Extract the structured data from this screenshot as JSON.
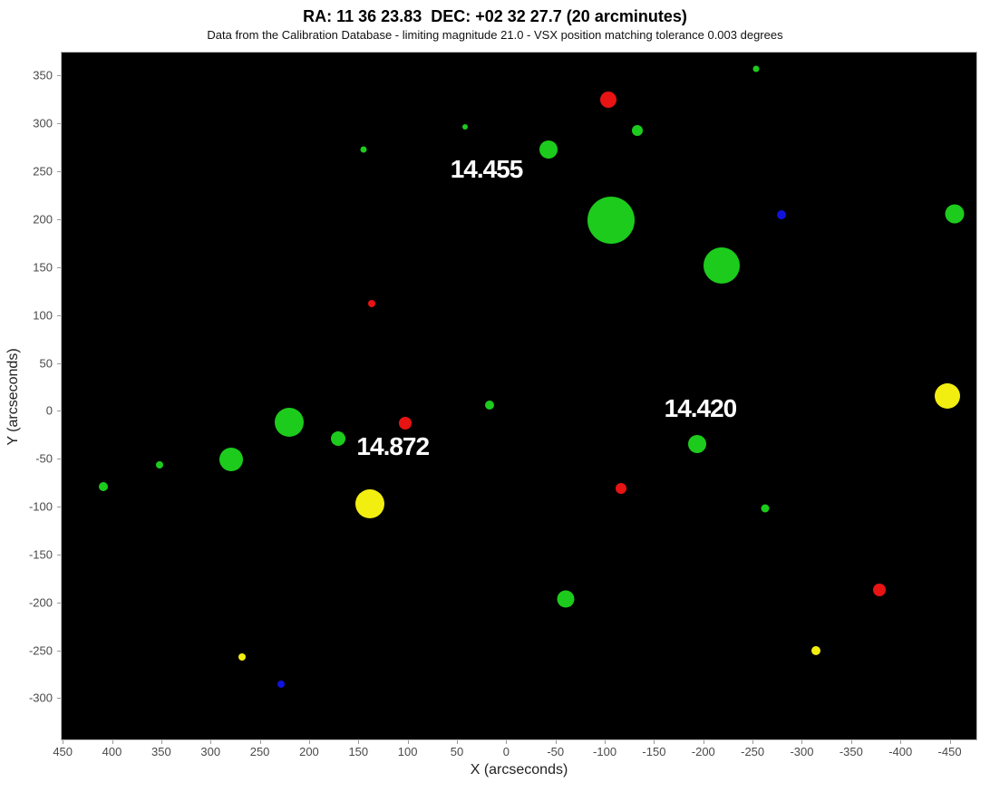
{
  "chart_data": {
    "type": "scatter",
    "title": "RA: 11 36 23.83  DEC: +02 32 27.7 (20 arcminutes)",
    "subtitle": "Data from the Calibration Database - limiting magnitude 21.0 - VSX position matching tolerance 0.003 degrees",
    "xlabel": "X (arcseconds)",
    "ylabel": "Y (arcseconds)",
    "xlim": [
      452,
      -478
    ],
    "ylim_top": 375,
    "ylim_bottom": -344,
    "x_ticks": [
      450,
      400,
      350,
      300,
      250,
      200,
      150,
      100,
      50,
      0,
      -50,
      -100,
      -150,
      -200,
      -250,
      -300,
      -350,
      -400,
      -450
    ],
    "y_ticks": [
      350,
      300,
      250,
      200,
      150,
      100,
      50,
      0,
      -50,
      -100,
      -150,
      -200,
      -250,
      -300
    ],
    "grid": false,
    "legend": "none",
    "plot_background": "#000000",
    "colors": {
      "green": "#1dcb1d",
      "red": "#e81313",
      "yellow": "#f2ee10",
      "blue": "#1113dd"
    },
    "points": [
      {
        "x": 146,
        "y": 274,
        "r": 3.5,
        "color": "green"
      },
      {
        "x": 43,
        "y": 297,
        "r": 3,
        "color": "green"
      },
      {
        "x": -103,
        "y": 326,
        "r": 9,
        "color": "red"
      },
      {
        "x": -132,
        "y": 294,
        "r": 6,
        "color": "green"
      },
      {
        "x": -42,
        "y": 274,
        "r": 10,
        "color": "green"
      },
      {
        "x": -105,
        "y": 200,
        "r": 26,
        "color": "green"
      },
      {
        "x": -253,
        "y": 358,
        "r": 3.5,
        "color": "green"
      },
      {
        "x": -278,
        "y": 206,
        "r": 5,
        "color": "blue"
      },
      {
        "x": -454,
        "y": 207,
        "r": 10.5,
        "color": "green"
      },
      {
        "x": -218,
        "y": 153,
        "r": 20,
        "color": "green"
      },
      {
        "x": 137,
        "y": 113,
        "r": 4,
        "color": "red"
      },
      {
        "x": 410,
        "y": -78,
        "r": 5,
        "color": "green"
      },
      {
        "x": 353,
        "y": -55,
        "r": 4,
        "color": "green"
      },
      {
        "x": 280,
        "y": -50,
        "r": 13,
        "color": "green"
      },
      {
        "x": 221,
        "y": -11,
        "r": 16,
        "color": "green"
      },
      {
        "x": 171,
        "y": -28,
        "r": 8,
        "color": "green"
      },
      {
        "x": 103,
        "y": -12,
        "r": 7,
        "color": "red"
      },
      {
        "x": 18,
        "y": 7,
        "r": 5,
        "color": "green"
      },
      {
        "x": 139,
        "y": -96,
        "r": 16,
        "color": "yellow"
      },
      {
        "x": -116,
        "y": -80,
        "r": 6,
        "color": "red"
      },
      {
        "x": -193,
        "y": -34,
        "r": 10,
        "color": "green"
      },
      {
        "x": -447,
        "y": 16,
        "r": 14,
        "color": "yellow"
      },
      {
        "x": -262,
        "y": -101,
        "r": 4.5,
        "color": "green"
      },
      {
        "x": -59,
        "y": -195,
        "r": 9.5,
        "color": "green"
      },
      {
        "x": 269,
        "y": -256,
        "r": 4,
        "color": "yellow"
      },
      {
        "x": 229,
        "y": -284,
        "r": 4,
        "color": "blue"
      },
      {
        "x": -378,
        "y": -186,
        "r": 7,
        "color": "red"
      },
      {
        "x": -313,
        "y": -249,
        "r": 5,
        "color": "yellow"
      }
    ],
    "annotations": [
      {
        "text": "14.455",
        "x": 21,
        "y": 253
      },
      {
        "text": "14.872",
        "x": 116,
        "y": -37
      },
      {
        "text": "14.420",
        "x": -196,
        "y": 3
      }
    ]
  }
}
